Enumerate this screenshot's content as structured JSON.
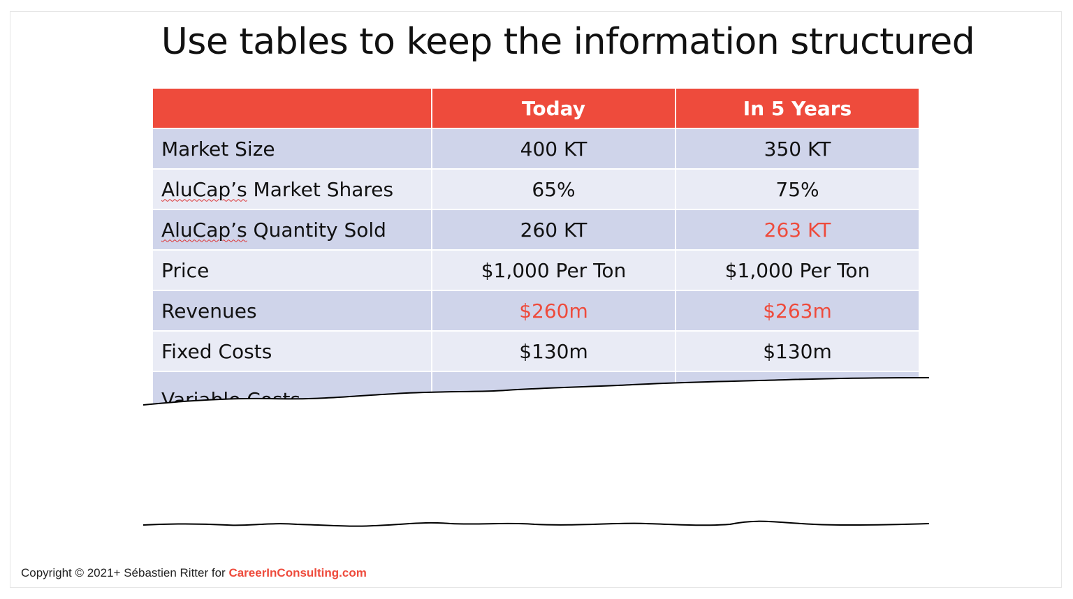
{
  "title": "Use tables to keep the information structured",
  "table": {
    "headers": [
      "",
      "Today",
      "In 5 Years"
    ],
    "rows": [
      {
        "label": "Market Size",
        "today": "400 KT",
        "future": "350 KT"
      },
      {
        "label_brand": "AluCap’s",
        "label_rest": " Market Shares",
        "today": "65%",
        "future": "75%"
      },
      {
        "label_brand": "AluCap’s",
        "label_rest": " Quantity Sold",
        "today": "260 KT",
        "future": "263 KT"
      },
      {
        "label": "Price",
        "today": "$1,000 Per Ton",
        "future": "$1,000 Per Ton"
      },
      {
        "label": "Revenues",
        "today": "$260m",
        "future": "$263m"
      },
      {
        "label": "Fixed Costs",
        "today": "$130m",
        "future": "$130m"
      },
      {
        "label": "Variable Costs"
      }
    ]
  },
  "footer": {
    "copyright": "Copyright © 2021+ Sébastien Ritter for ",
    "brand": "CareerInConsulting.com"
  },
  "colors": {
    "header_bg": "#ee4b3c",
    "row_dark": "#cfd4ea",
    "row_light": "#e9ebf5",
    "highlight": "#ee4b3c"
  }
}
